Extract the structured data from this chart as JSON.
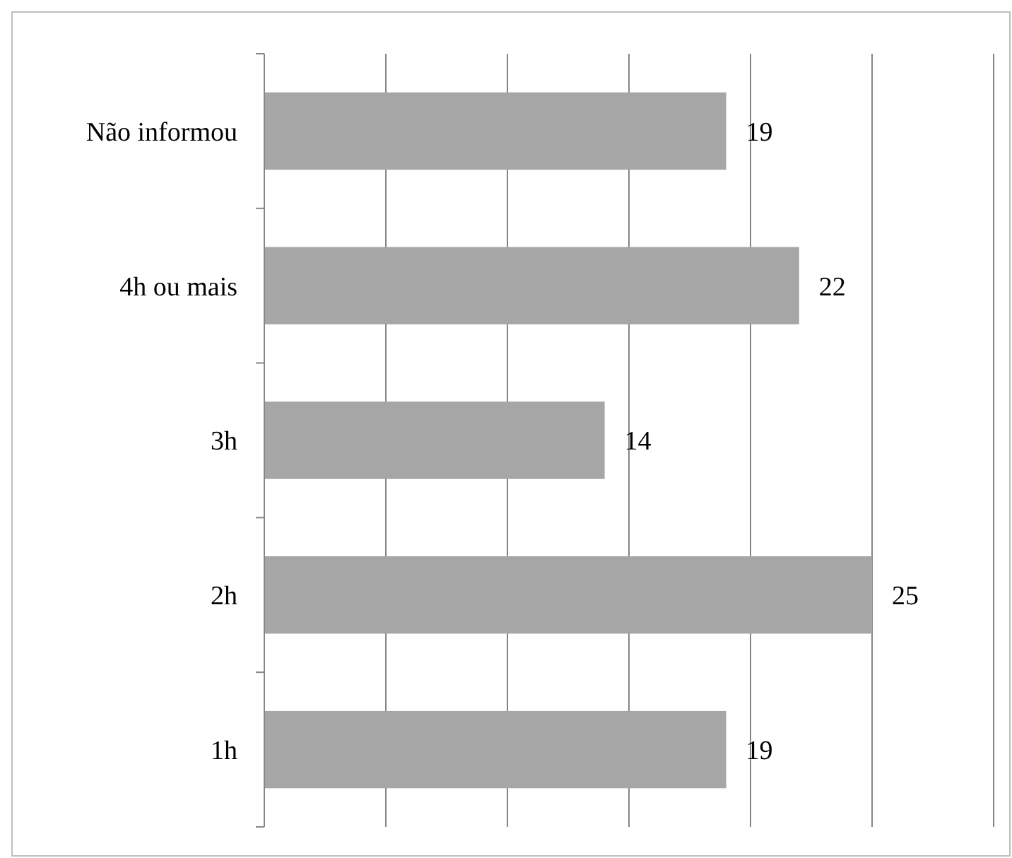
{
  "chart_data": {
    "type": "bar",
    "orientation": "horizontal",
    "categories": [
      "Não informou",
      "4h ou mais",
      "3h",
      "2h",
      "1h"
    ],
    "values": [
      19,
      22,
      14,
      25,
      19
    ],
    "color": "#a6a6a6",
    "xlim": [
      0,
      30
    ],
    "xticks": [
      {
        "value": 0,
        "label": null
      },
      {
        "value": 5,
        "label": null
      },
      {
        "value": 10,
        "label": null
      },
      {
        "value": 15,
        "label": null
      },
      {
        "value": 20,
        "label": null
      },
      {
        "value": 25,
        "label": null
      },
      {
        "value": 30,
        "label": null
      }
    ],
    "grid": "x",
    "tick_labels": "y",
    "data_labels": true
  }
}
